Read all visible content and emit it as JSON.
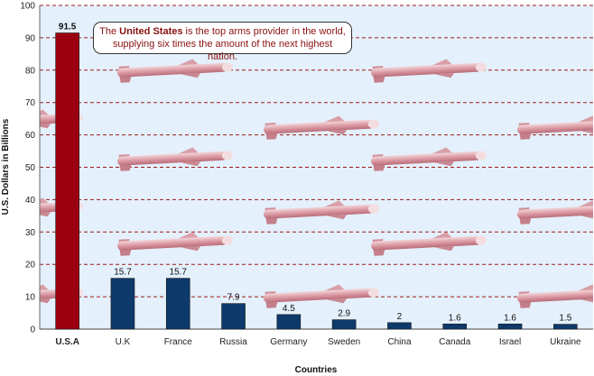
{
  "chart_data": {
    "type": "bar",
    "title": "",
    "xlabel": "Countries",
    "ylabel": "U.S. Dollars in Billions",
    "ylim": [
      0,
      100
    ],
    "yticks": [
      0,
      10,
      20,
      30,
      40,
      50,
      60,
      70,
      80,
      90,
      100
    ],
    "categories": [
      "U.S.A",
      "U.K",
      "France",
      "Russia",
      "Germany",
      "Sweden",
      "China",
      "Canada",
      "Israel",
      "Ukraine"
    ],
    "values": [
      91.5,
      15.7,
      15.7,
      7.9,
      4.5,
      2.9,
      2,
      1.6,
      1.6,
      1.5
    ],
    "value_labels": [
      "91.5",
      "15.7",
      "15.7",
      "7.9",
      "4.5",
      "2.9",
      "2",
      "1.6",
      "1.6",
      "1.5"
    ],
    "grid": true,
    "highlight_color": "#9b0010",
    "bar_color": "#0d3a6b",
    "plot_background": "#e4f0fb",
    "gridline_color": "#9b1c1c",
    "background_icon": "missile-icon",
    "annotation": {
      "before": "The ",
      "emphasis": "United States",
      "after": " is the top arms provider in the world, supplying six times the amount of the next highest nation."
    }
  }
}
